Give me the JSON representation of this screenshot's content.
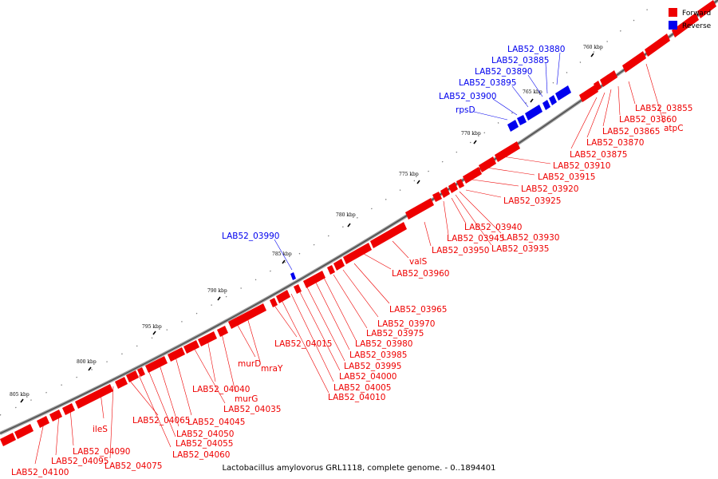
{
  "caption": "Lactobacillus amylovorus GRL1118, complete genome. - 0..1894401",
  "legend": {
    "forward": {
      "label": "Forward",
      "color": "#ee0000"
    },
    "reverse": {
      "label": "Reverse",
      "color": "#0000ee"
    }
  },
  "ticks": [
    "760 kbp",
    "765 kbp",
    "770 kbp",
    "775 kbp",
    "780 kbp",
    "785 kbp",
    "790 kbp",
    "795 kbp",
    "800 kbp",
    "805 kbp"
  ],
  "forward_genes": [
    "LAB52_03855",
    "LAB52_03860",
    "atpC",
    "LAB52_03865",
    "LAB52_03870",
    "LAB52_03875",
    "LAB52_03910",
    "LAB52_03915",
    "LAB52_03920",
    "LAB52_03925",
    "LAB52_03940",
    "LAB52_03930",
    "LAB52_03945",
    "LAB52_03935",
    "LAB52_03950",
    "valS",
    "LAB52_03960",
    "LAB52_03965",
    "LAB52_03970",
    "LAB52_03975",
    "LAB52_03980",
    "LAB52_03985",
    "LAB52_03995",
    "LAB52_04000",
    "LAB52_04005",
    "LAB52_04010",
    "LAB52_04015",
    "murD",
    "mraY",
    "LAB52_04040",
    "murG",
    "LAB52_04035",
    "LAB52_04045",
    "LAB52_04050",
    "LAB52_04055",
    "LAB52_04060",
    "LAB52_04065",
    "ileS",
    "LAB52_04090",
    "LAB52_04095",
    "LAB52_04075",
    "LAB52_04100"
  ],
  "reverse_genes": [
    "LAB52_03880",
    "LAB52_03885",
    "LAB52_03890",
    "LAB52_03895",
    "LAB52_03900",
    "rpsD",
    "LAB52_03990"
  ]
}
